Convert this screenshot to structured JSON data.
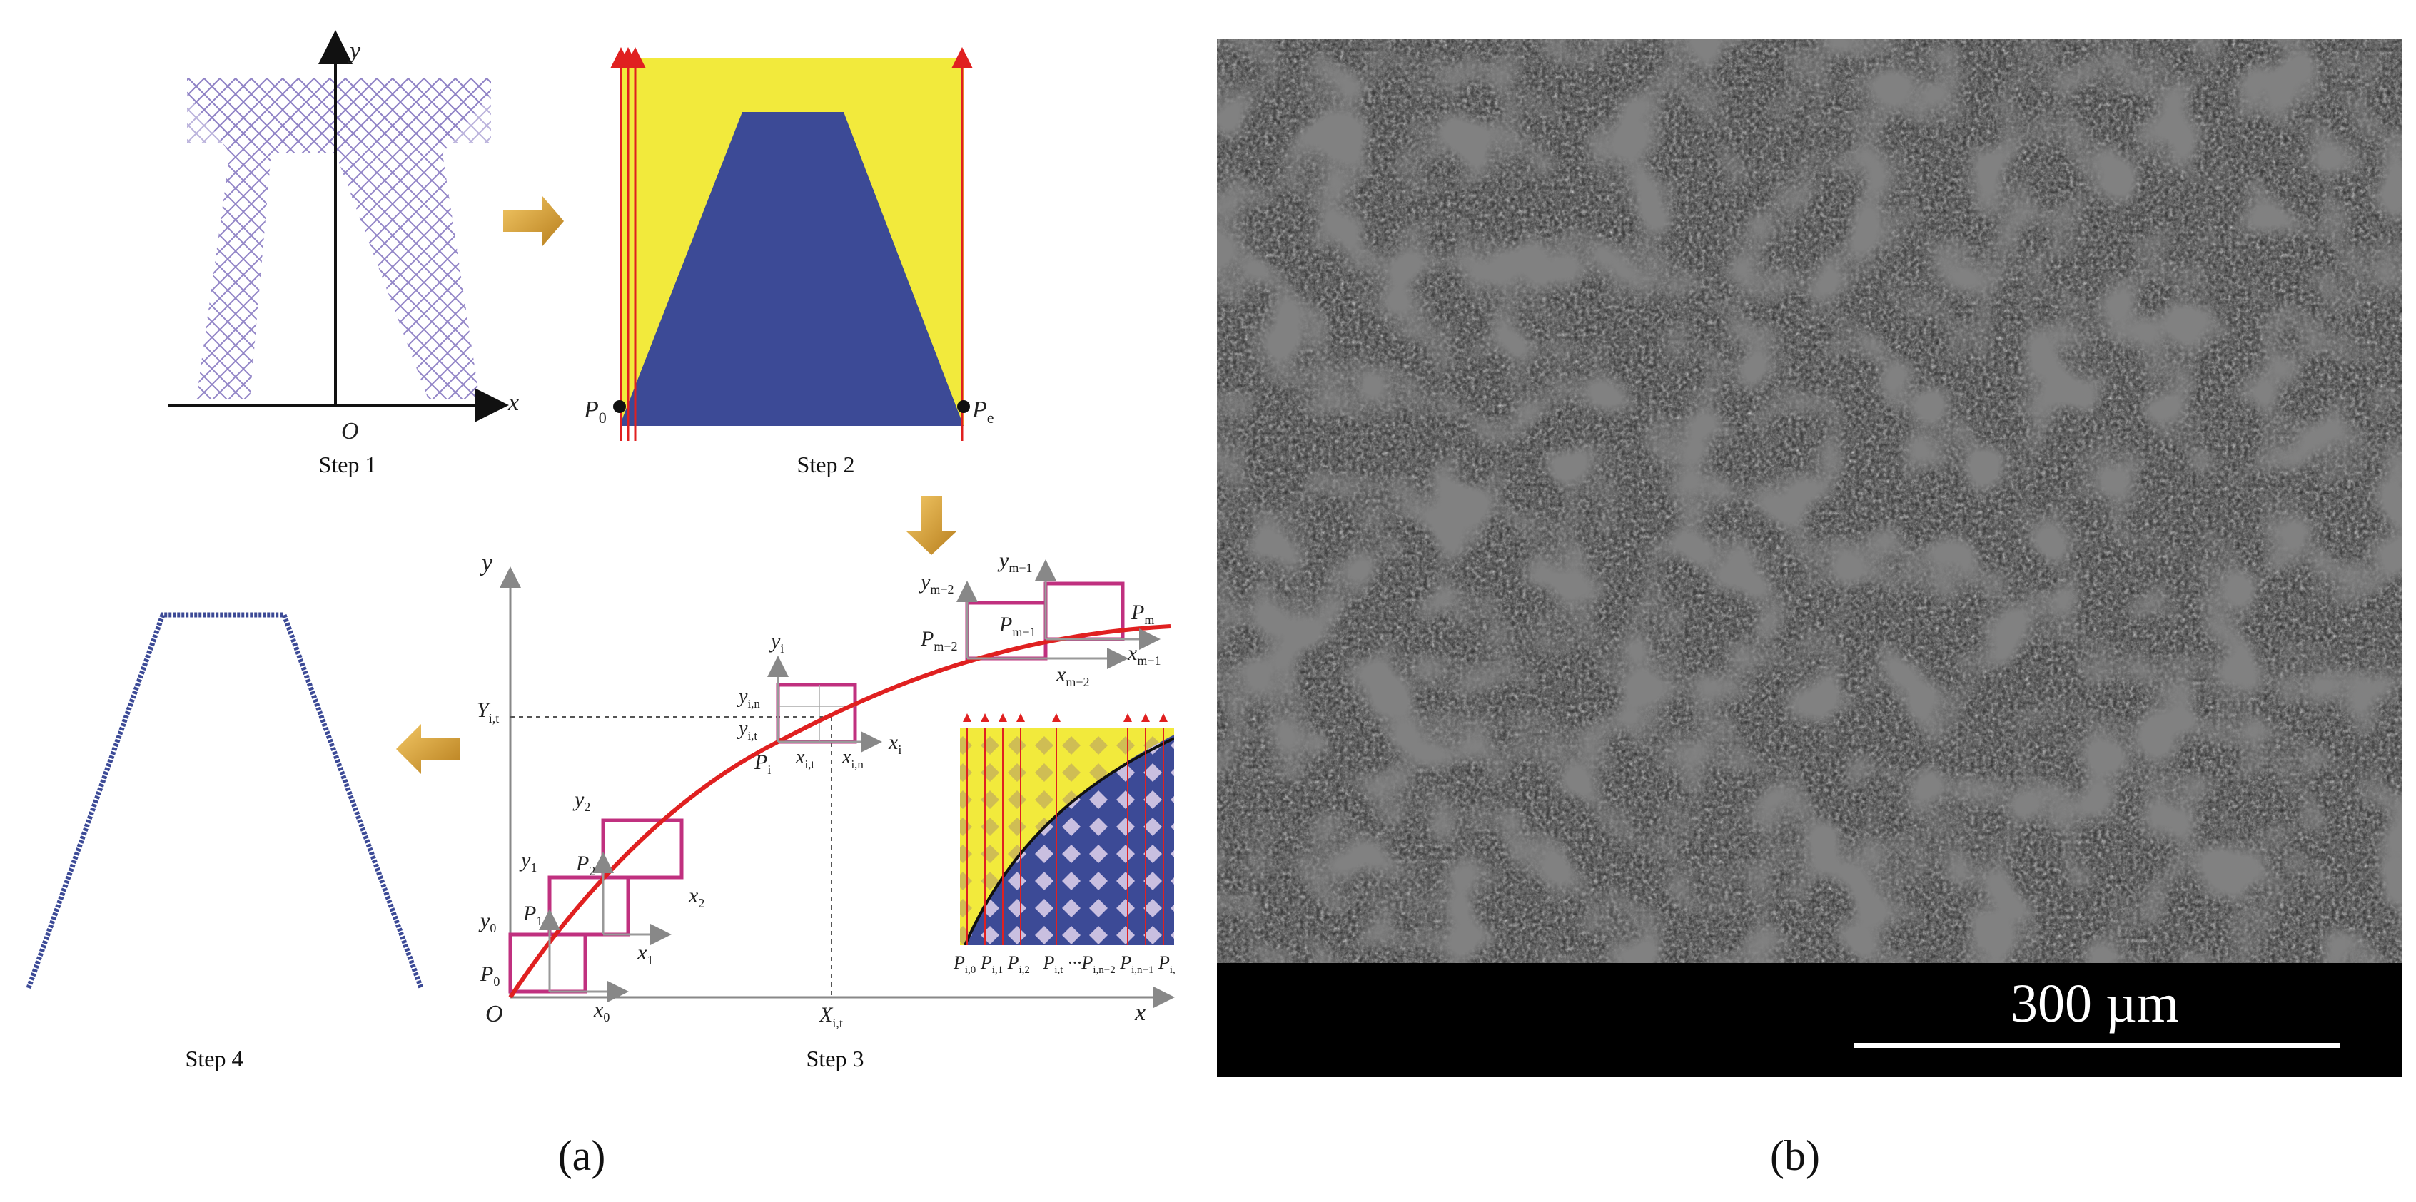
{
  "panel_a": {
    "label": "(a)",
    "step1": {
      "caption": "Step 1",
      "axis_x": "x",
      "axis_y": "y",
      "origin": "O"
    },
    "step2": {
      "caption": "Step 2",
      "p0": "P",
      "p0_sub": "0",
      "pe": "P",
      "pe_sub": "e"
    },
    "step3": {
      "caption": "Step 3",
      "axis_x": "x",
      "axis_y": "y",
      "origin": "O",
      "y_tick": "Y",
      "y_tick_sub": "i,t",
      "x_tick": "X",
      "x_tick_sub": "i,t",
      "p0": "P",
      "p0_sub": "0",
      "p1": "P",
      "p1_sub": "1",
      "p2": "P",
      "p2_sub": "2",
      "pi": "P",
      "pi_sub": "i",
      "pm1": "P",
      "pm1_sub": "m−1",
      "pm2": "P",
      "pm2_sub": "m−2",
      "pm": "P",
      "pm_sub": "m",
      "x0": "x",
      "x0_sub": "0",
      "x1": "x",
      "x1_sub": "1",
      "x2": "x",
      "x2_sub": "2",
      "xi": "x",
      "xi_sub": "i",
      "xit": "x",
      "xit_sub": "i,t",
      "xin": "x",
      "xin_sub": "i,n",
      "xm2": "x",
      "xm2_sub": "m−2",
      "xm1": "x",
      "xm1_sub": "m−1",
      "y0": "y",
      "y0_sub": "0",
      "y1": "y",
      "y1_sub": "1",
      "y2": "y",
      "y2_sub": "2",
      "yi": "y",
      "yi_sub": "i",
      "yin": "y",
      "yin_sub": "i,n",
      "yit": "y",
      "yit_sub": "i,t",
      "ym2": "y",
      "ym2_sub": "m−2",
      "ym1": "y",
      "ym1_sub": "m−1",
      "inset_labels": [
        "P",
        "P",
        "P",
        "P",
        "···P",
        "P",
        "P"
      ],
      "inset_subs": [
        "i,0",
        "i,1",
        "i,2",
        "i,t",
        "i,n−2",
        "i,n−1",
        "i,"
      ]
    },
    "step4": {
      "caption": "Step 4"
    }
  },
  "panel_b": {
    "label": "(b)",
    "scale_bar_text": "300 µm"
  },
  "colors": {
    "yellow": "#f2ea3c",
    "blue": "#3c4a96",
    "curve_red": "#e02020",
    "box_magenta": "#c0307f",
    "arrow_gold": "#c8962a",
    "lattice": "#8c7fc4"
  }
}
